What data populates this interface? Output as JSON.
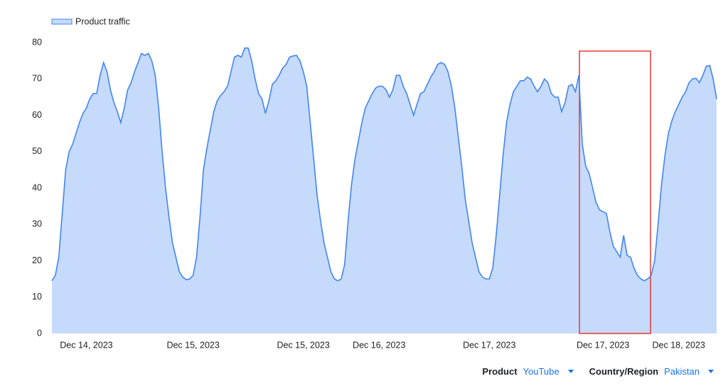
{
  "chart_data": {
    "type": "area",
    "series": [
      {
        "name": "Product traffic",
        "color": "#4285f4",
        "fill": "#c6dafc",
        "values": [
          14.5,
          16,
          21,
          33,
          45,
          50,
          52,
          55,
          58,
          60.5,
          62,
          64.5,
          66,
          66,
          71,
          74.5,
          72,
          67,
          63.5,
          61,
          58,
          62,
          67,
          69,
          72,
          74.5,
          77,
          76.5,
          77,
          75,
          71,
          62,
          50,
          40,
          32,
          25,
          21,
          17,
          15.5,
          14.8,
          15,
          16,
          21,
          32,
          45,
          51,
          56,
          61,
          64,
          65.5,
          66.5,
          68,
          72,
          76,
          76.5,
          76,
          78.5,
          78.5,
          75,
          70,
          66,
          64.5,
          60.5,
          64,
          68.5,
          69.5,
          71,
          73,
          74,
          76,
          76.3,
          76.5,
          75,
          72,
          68,
          58,
          48,
          38,
          31,
          25,
          21,
          17,
          15,
          14.5,
          15,
          19,
          31,
          41,
          48,
          53,
          58,
          62,
          64,
          66,
          67.5,
          68,
          68,
          67,
          65,
          67,
          71,
          71,
          68,
          66,
          63,
          60,
          63,
          66,
          66.5,
          68.5,
          70.5,
          72,
          74,
          74.5,
          74,
          72,
          68,
          62,
          54,
          46,
          37,
          31,
          25,
          21,
          17,
          15.5,
          15,
          15,
          18,
          27,
          38,
          49,
          58,
          63,
          66.5,
          68,
          69.5,
          69.5,
          70.5,
          70,
          68,
          66.5,
          68,
          70,
          69,
          66,
          65,
          65,
          61,
          63.5,
          68,
          68.5,
          66.5,
          71,
          52,
          46,
          44,
          40,
          36,
          34,
          33.5,
          33,
          28,
          24,
          22.5,
          21,
          27,
          21.5,
          21,
          18,
          16,
          15,
          14.5,
          15,
          16,
          20,
          30,
          41,
          49,
          55,
          58.5,
          61,
          63,
          65,
          66.5,
          69,
          70,
          70.2,
          69,
          71,
          73.5,
          73.7,
          70,
          64.5
        ]
      }
    ],
    "categories": [
      null,
      null,
      null,
      null,
      null,
      null,
      null,
      null,
      null,
      null,
      "Dec 14, 2023",
      null,
      null,
      null,
      null,
      null,
      null,
      null,
      null,
      null,
      null,
      null,
      null,
      null,
      null,
      null,
      null,
      null,
      null,
      null,
      null,
      null,
      null,
      null,
      null,
      null,
      null,
      null,
      null,
      null,
      null,
      "Dec 15, 2023",
      null,
      null,
      null,
      null,
      null,
      null,
      null,
      null,
      null,
      null,
      null,
      null,
      null,
      null,
      null,
      null,
      null,
      null,
      null,
      null,
      null,
      null,
      null,
      null,
      null,
      null,
      null,
      null,
      null,
      null,
      null,
      "Dec 15, 2023",
      null,
      null,
      null,
      null,
      null,
      null,
      null,
      null,
      null,
      null,
      null,
      null,
      null,
      null,
      null,
      null,
      null,
      null,
      null,
      null,
      null,
      "Dec 16, 2023",
      null,
      null,
      null,
      null,
      null,
      null,
      null,
      null,
      null,
      null,
      null,
      null,
      null,
      null,
      null,
      null,
      null,
      null,
      null,
      null,
      null,
      null,
      null,
      null,
      null,
      null,
      null,
      null,
      null,
      null,
      null,
      "Dec 17, 2023",
      null,
      null,
      null,
      null,
      null,
      null,
      null,
      null,
      null,
      null,
      null,
      null,
      null,
      null,
      null,
      null,
      null,
      null,
      null,
      null,
      null,
      null,
      null,
      null,
      null,
      null,
      null,
      null,
      null,
      null,
      null,
      null,
      "Dec 17, 2023",
      null,
      null,
      null,
      null,
      null,
      null,
      null,
      null,
      null,
      null,
      null,
      null,
      null,
      null,
      null,
      null,
      null,
      null,
      null,
      null,
      null,
      "Dec 18, 2023",
      null,
      null,
      null,
      null,
      null,
      null,
      null,
      null,
      null,
      null,
      null
    ],
    "ylim": [
      0,
      80
    ],
    "yticks": [
      0,
      10,
      20,
      30,
      40,
      50,
      60,
      70,
      80
    ],
    "grid": false,
    "legend": "top-left"
  },
  "filters": [
    {
      "label": "Product",
      "value": "YouTube"
    },
    {
      "label": "Country/Region",
      "value": "Pakistan"
    }
  ]
}
